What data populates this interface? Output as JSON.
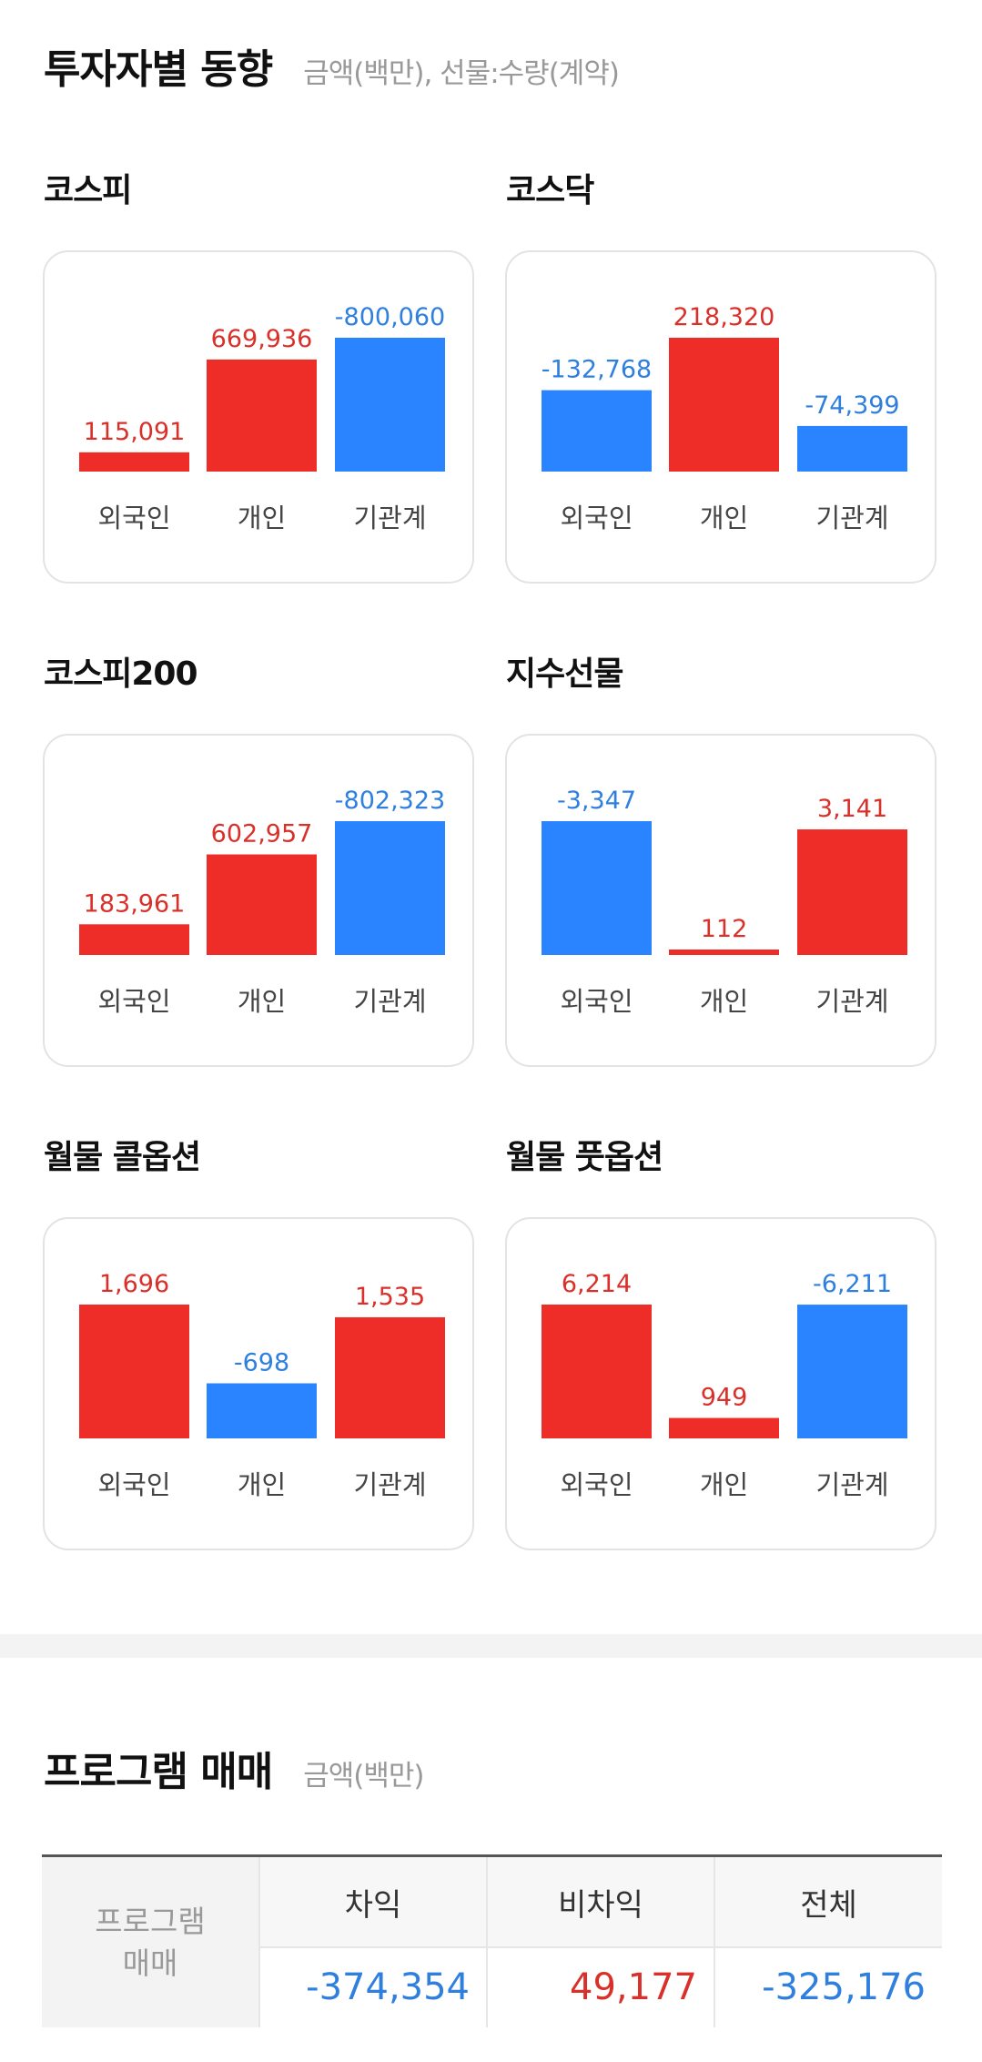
{
  "header": {
    "title": "투자자별 동향",
    "subtitle": "금액(백만), 선물:수량(계약)"
  },
  "colors": {
    "positive": "#ee2d28",
    "negative": "#2a84ff",
    "positive_text": "#d9302a",
    "negative_text": "#2f7fdf"
  },
  "investor_labels": [
    "외국인",
    "개인",
    "기관계"
  ],
  "markets": [
    {
      "name": "코스피",
      "labels": [
        "115,091",
        "669,936",
        "-800,060"
      ]
    },
    {
      "name": "코스닥",
      "labels": [
        "-132,768",
        "218,320",
        "-74,399"
      ]
    },
    {
      "name": "코스피200",
      "labels": [
        "183,961",
        "602,957",
        "-802,323"
      ]
    },
    {
      "name": "지수선물",
      "labels": [
        "-3,347",
        "112",
        "3,141"
      ]
    },
    {
      "name": "월물 콜옵션",
      "labels": [
        "1,696",
        "-698",
        "1,535"
      ]
    },
    {
      "name": "월물 풋옵션",
      "labels": [
        "6,214",
        "949",
        "-6,211"
      ]
    }
  ],
  "chart_data": [
    {
      "type": "bar",
      "title": "코스피",
      "categories": [
        "외국인",
        "개인",
        "기관계"
      ],
      "values": [
        115091,
        669936,
        -800060
      ]
    },
    {
      "type": "bar",
      "title": "코스닥",
      "categories": [
        "외국인",
        "개인",
        "기관계"
      ],
      "values": [
        -132768,
        218320,
        -74399
      ]
    },
    {
      "type": "bar",
      "title": "코스피200",
      "categories": [
        "외국인",
        "개인",
        "기관계"
      ],
      "values": [
        183961,
        602957,
        -802323
      ]
    },
    {
      "type": "bar",
      "title": "지수선물",
      "categories": [
        "외국인",
        "개인",
        "기관계"
      ],
      "values": [
        -3347,
        112,
        3141
      ]
    },
    {
      "type": "bar",
      "title": "월물 콜옵션",
      "categories": [
        "외국인",
        "개인",
        "기관계"
      ],
      "values": [
        1696,
        -698,
        1535
      ]
    },
    {
      "type": "bar",
      "title": "월물 풋옵션",
      "categories": [
        "외국인",
        "개인",
        "기관계"
      ],
      "values": [
        6214,
        949,
        -6211
      ]
    }
  ],
  "program": {
    "title": "프로그램 매매",
    "subtitle": "금액(백만)",
    "row_header": "프로그램\n매매",
    "columns": [
      {
        "header": "차익",
        "value": "-374,354",
        "sign": "negative"
      },
      {
        "header": "비차익",
        "value": "49,177",
        "sign": "positive"
      },
      {
        "header": "전체",
        "value": "-325,176",
        "sign": "negative"
      }
    ]
  }
}
